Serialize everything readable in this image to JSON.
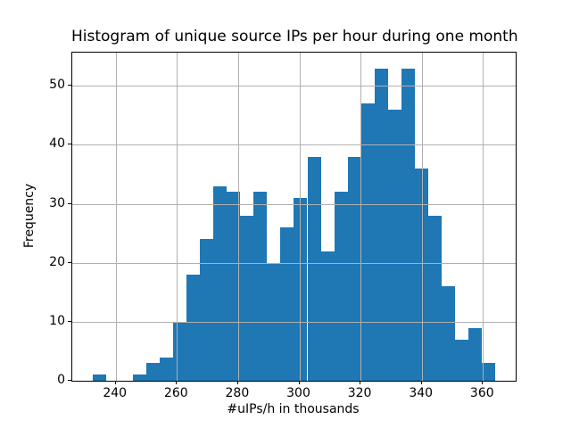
{
  "chart_data": {
    "type": "bar",
    "subtype": "histogram",
    "title": "Histogram of unique source IPs per hour during one month",
    "xlabel": "#uIPs/h in thousands",
    "ylabel": "Frequency",
    "bin_start": 232.4,
    "bin_width": 4.389,
    "counts": [
      1,
      0,
      0,
      1,
      3,
      4,
      10,
      18,
      24,
      33,
      32,
      28,
      32,
      20,
      26,
      31,
      38,
      22,
      32,
      38,
      47,
      53,
      46,
      53,
      36,
      28,
      16,
      7,
      9,
      3
    ],
    "x_ticks": [
      240,
      260,
      280,
      300,
      320,
      340,
      360
    ],
    "y_ticks": [
      0,
      10,
      20,
      30,
      40,
      50
    ],
    "xlim": [
      225.8,
      370.7
    ],
    "ylim": [
      0,
      55.65
    ],
    "bar_color": "#1f77b4",
    "grid": true,
    "grid_color": "#b0b0b0",
    "background": "#ffffff",
    "legend": null
  }
}
